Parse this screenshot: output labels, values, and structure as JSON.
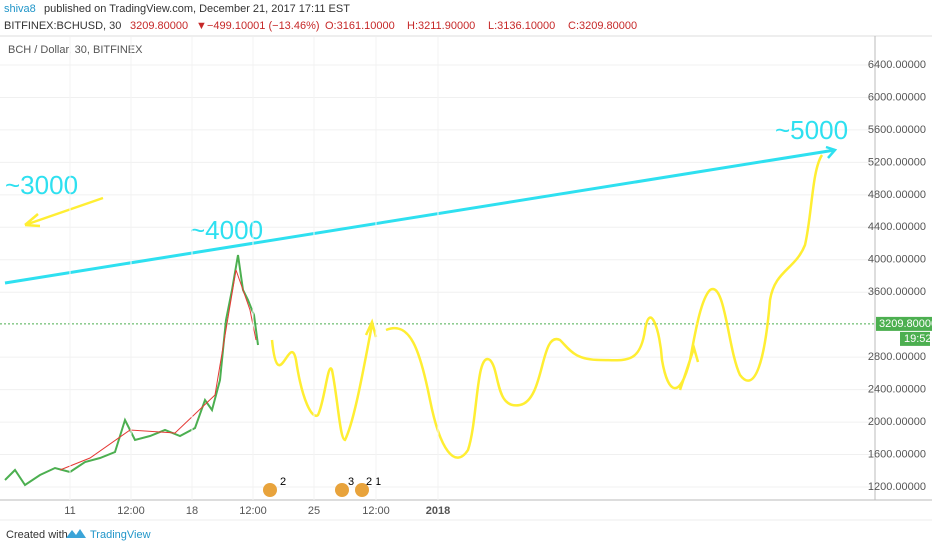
{
  "header": {
    "author": "shiva8",
    "published": "published on TradingView.com, December 21, 2017 17:11 EST"
  },
  "quote": {
    "symbol": "BITFINEX:BCHUSD, 30",
    "last": "3209.80000",
    "change": "−499.10001 (−13.46%)",
    "open": "O:3161.10000",
    "high": "H:3211.90000",
    "low": "L:3136.10000",
    "close": "C:3209.80000"
  },
  "chart": {
    "legend": "BCH / Dollar, 30, BITFINEX",
    "price_axis": {
      "ticks": [
        {
          "value": 6400,
          "label": "6400.00000"
        },
        {
          "value": 6000,
          "label": "6000.00000"
        },
        {
          "value": 5600,
          "label": "5600.00000"
        },
        {
          "value": 5200,
          "label": "5200.00000"
        },
        {
          "value": 4800,
          "label": "4800.00000"
        },
        {
          "value": 4400,
          "label": "4400.00000"
        },
        {
          "value": 4000,
          "label": "4000.00000"
        },
        {
          "value": 3600,
          "label": "3600.00000"
        },
        {
          "value": 2800,
          "label": "2800.00000"
        },
        {
          "value": 2400,
          "label": "2400.00000"
        },
        {
          "value": 2000,
          "label": "2000.00000"
        },
        {
          "value": 1600,
          "label": "1600.00000"
        },
        {
          "value": 1200,
          "label": "1200.00000"
        }
      ],
      "current": {
        "value": 3209.8,
        "label": "3209.80000"
      },
      "countdown": "19:52"
    },
    "time_axis": [
      "11",
      "12:00",
      "18",
      "12:00",
      "25",
      "12:00",
      "2018"
    ],
    "annotations": [
      "~3000",
      "~4000",
      "~5000"
    ],
    "events": [
      "2",
      "3",
      "2",
      "1"
    ]
  },
  "footer": {
    "created": "Created with",
    "brand": "TradingView"
  }
}
